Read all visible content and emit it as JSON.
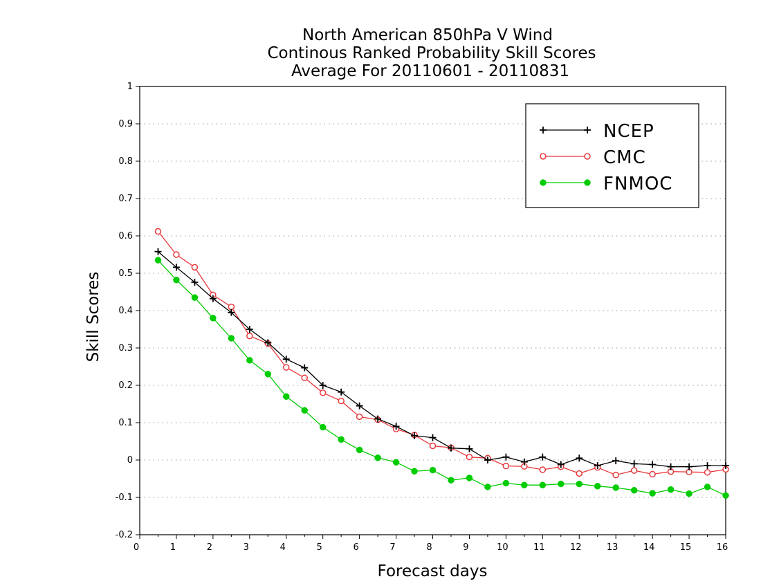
{
  "chart_data": {
    "type": "line",
    "title": [
      "North American 850hPa V Wind",
      "Continous Ranked Probability Skill Scores",
      "Average For 20110601 - 20110831"
    ],
    "xlabel": "Forecast days",
    "ylabel": "Skill Scores",
    "xlim": [
      0,
      16
    ],
    "ylim": [
      -0.2,
      1
    ],
    "xticks": [
      0,
      1,
      2,
      3,
      4,
      5,
      6,
      7,
      8,
      9,
      10,
      11,
      12,
      13,
      14,
      15,
      16
    ],
    "xtick_labels": [
      "0",
      "1",
      "2",
      "3",
      "4",
      "5",
      "6",
      "7",
      "8",
      "9",
      "10",
      "11",
      "12",
      "13",
      "14",
      "15",
      "16"
    ],
    "yticks": [
      -0.2,
      -0.1,
      0,
      0.1,
      0.2,
      0.3,
      0.4,
      0.5,
      0.6,
      0.7,
      0.8,
      0.9,
      1
    ],
    "ytick_labels": [
      "-0.2",
      "-0.1",
      "0",
      "0.1",
      "0.2",
      "0.3",
      "0.4",
      "0.5",
      "0.6",
      "0.7",
      "0.8",
      "0.9",
      "1"
    ],
    "grid": "horizontal dotted",
    "legend_position": "top-right",
    "x": [
      0.5,
      1,
      1.5,
      2,
      2.5,
      3,
      3.5,
      4,
      4.5,
      5,
      5.5,
      6,
      6.5,
      7,
      7.5,
      8,
      8.5,
      9,
      9.5,
      10,
      10.5,
      11,
      11.5,
      12,
      12.5,
      13,
      13.5,
      14,
      14.5,
      15,
      15.5,
      16
    ],
    "series": [
      {
        "name": "NCEP",
        "color": "#000000",
        "marker": "plus",
        "values": [
          0.558,
          0.516,
          0.476,
          0.432,
          0.395,
          0.35,
          0.314,
          0.27,
          0.247,
          0.2,
          0.182,
          0.145,
          0.11,
          0.09,
          0.065,
          0.06,
          0.032,
          0.03,
          0.0,
          0.008,
          -0.005,
          0.008,
          -0.012,
          0.005,
          -0.015,
          -0.002,
          -0.01,
          -0.012,
          -0.018,
          -0.018,
          -0.015,
          -0.015
        ]
      },
      {
        "name": "CMC",
        "color": "#e8383c",
        "marker": "open-circle",
        "values": [
          0.612,
          0.55,
          0.516,
          0.442,
          0.41,
          0.332,
          0.312,
          0.248,
          0.22,
          0.18,
          0.158,
          0.116,
          0.108,
          0.083,
          0.067,
          0.038,
          0.033,
          0.008,
          0.005,
          -0.016,
          -0.017,
          -0.026,
          -0.018,
          -0.036,
          -0.02,
          -0.04,
          -0.028,
          -0.038,
          -0.031,
          -0.032,
          -0.033,
          -0.025
        ]
      },
      {
        "name": "FNMOC",
        "color": "#00cc00",
        "marker": "filled-circle",
        "values": [
          0.535,
          0.482,
          0.435,
          0.38,
          0.326,
          0.267,
          0.23,
          0.17,
          0.133,
          0.088,
          0.055,
          0.027,
          0.006,
          -0.006,
          -0.03,
          -0.027,
          -0.054,
          -0.048,
          -0.072,
          -0.062,
          -0.067,
          -0.067,
          -0.064,
          -0.064,
          -0.07,
          -0.074,
          -0.081,
          -0.089,
          -0.079,
          -0.09,
          -0.072,
          -0.095
        ]
      }
    ]
  }
}
